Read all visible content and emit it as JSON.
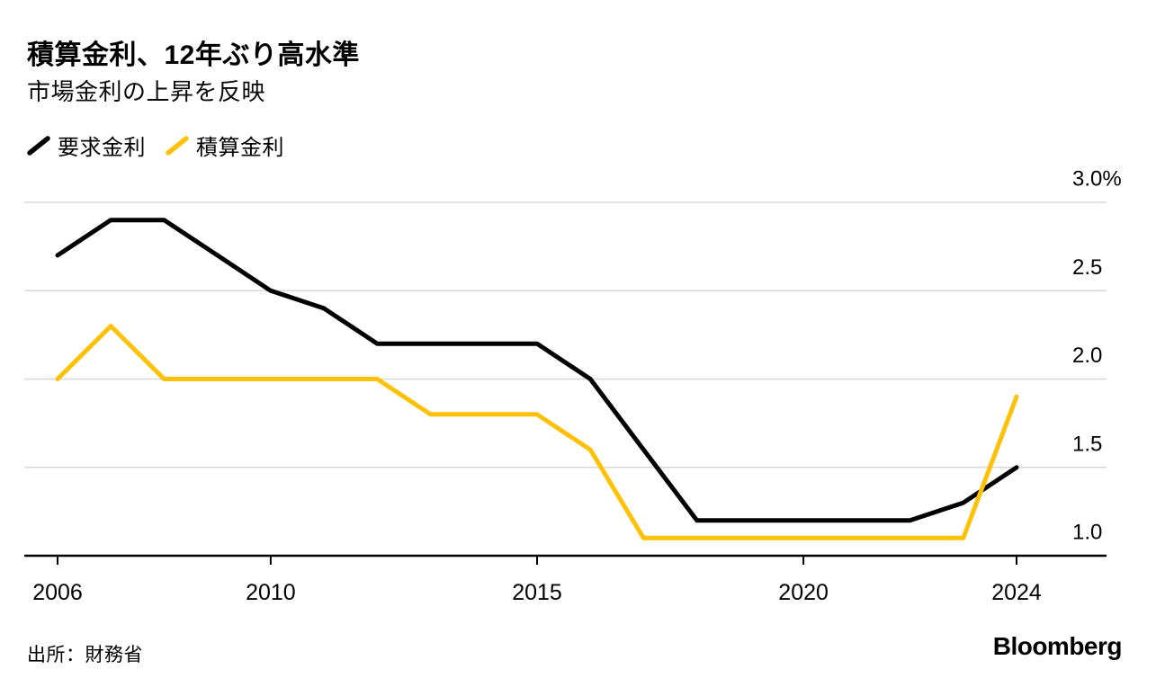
{
  "header": {
    "title": "積算金利、12年ぶり高水準",
    "subtitle": "市場金利の上昇を反映"
  },
  "legend": {
    "items": [
      {
        "label": "要求金利",
        "color": "#000000"
      },
      {
        "label": "積算金利",
        "color": "#FFC107"
      }
    ]
  },
  "chart_data": {
    "type": "line",
    "title": "積算金利、12年ぶり高水準",
    "subtitle": "市場金利の上昇を反映",
    "xlabel": "",
    "ylabel": "",
    "unit": "%",
    "x": [
      2006,
      2007,
      2008,
      2009,
      2010,
      2011,
      2012,
      2013,
      2014,
      2015,
      2016,
      2017,
      2018,
      2019,
      2020,
      2021,
      2022,
      2023,
      2024
    ],
    "series": [
      {
        "name": "要求金利",
        "color": "#000000",
        "values": [
          2.7,
          2.9,
          2.9,
          2.7,
          2.5,
          2.4,
          2.2,
          2.2,
          2.2,
          2.2,
          2.0,
          1.6,
          1.2,
          1.2,
          1.2,
          1.2,
          1.2,
          1.3,
          1.5
        ]
      },
      {
        "name": "積算金利",
        "color": "#FFC107",
        "values": [
          2.0,
          2.3,
          2.0,
          2.0,
          2.0,
          2.0,
          2.0,
          1.8,
          1.8,
          1.8,
          1.6,
          1.1,
          1.1,
          1.1,
          1.1,
          1.1,
          1.1,
          1.1,
          1.9
        ]
      }
    ],
    "ylim": [
      1.0,
      3.0
    ],
    "yticks": [
      {
        "value": 3.0,
        "label": "3.0%"
      },
      {
        "value": 2.5,
        "label": "2.5"
      },
      {
        "value": 2.0,
        "label": "2.0"
      },
      {
        "value": 1.5,
        "label": "1.5"
      },
      {
        "value": 1.0,
        "label": "1.0"
      }
    ],
    "xticks": [
      2006,
      2010,
      2015,
      2020,
      2024
    ],
    "grid": "horizontal",
    "legend_position": "top-left"
  },
  "footer": {
    "source": "出所：財務省",
    "brand": "Bloomberg"
  },
  "colors": {
    "background": "#FFFFFF",
    "text": "#000000",
    "gridline": "#D8D8D8",
    "axis": "#000000"
  }
}
